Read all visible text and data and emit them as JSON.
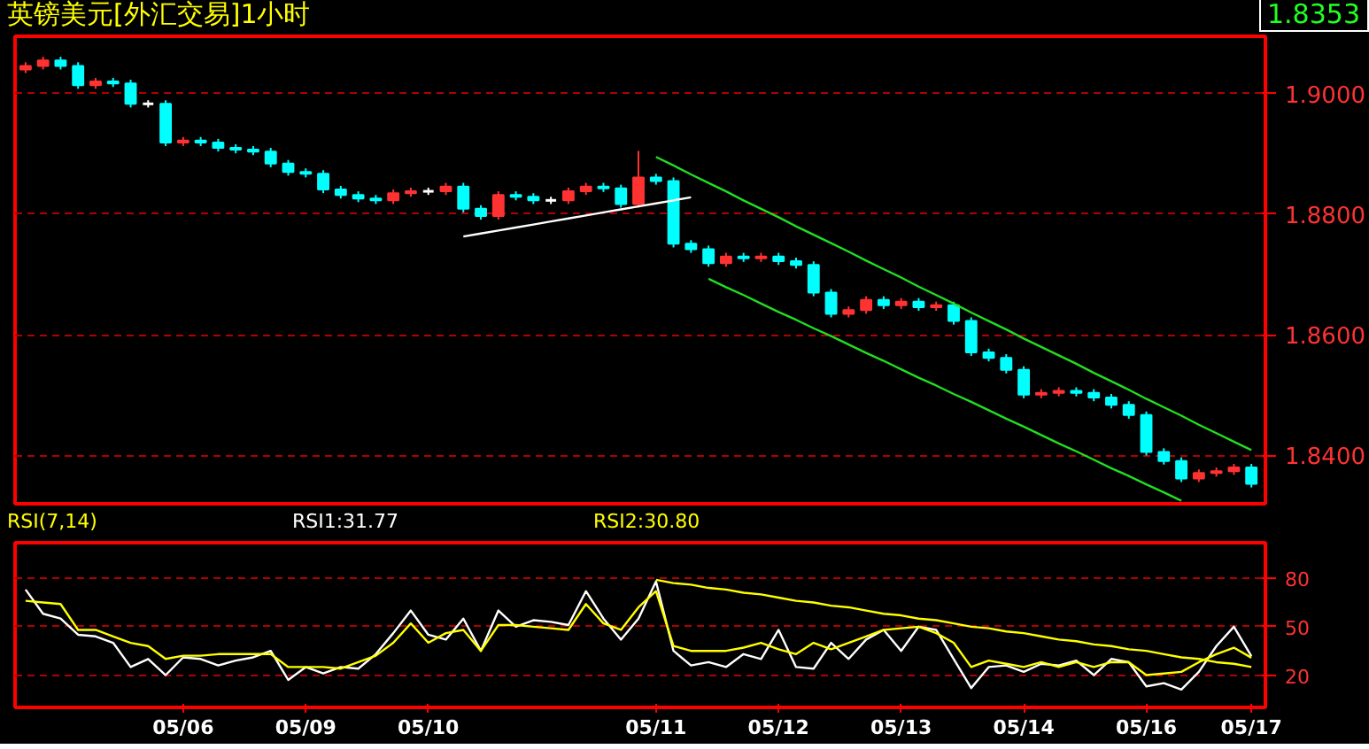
{
  "chart_data": [
    {
      "type": "candlestick",
      "title": "英镑美元[外汇交易]1小时",
      "annotations": [
        "1.8353"
      ],
      "ylim": [
        1.832,
        1.9095
      ],
      "yticks": [
        {
          "value": 1.84,
          "label": "1.8400"
        },
        {
          "value": 1.86,
          "label": "1.8600"
        },
        {
          "value": 1.88,
          "label": "1.8800"
        },
        {
          "value": 1.9,
          "label": "1.9000"
        }
      ],
      "grid": "y",
      "tick_labels": "y",
      "categories": [
        null,
        null,
        null,
        null,
        null,
        null,
        null,
        null,
        null,
        null,
        null,
        null,
        null,
        null,
        null,
        null,
        null,
        null,
        null,
        null,
        null,
        null,
        null,
        null,
        null,
        null,
        null,
        null,
        null,
        null,
        null,
        null,
        null,
        null,
        null,
        null,
        null,
        null,
        null,
        null,
        null,
        null,
        null,
        null,
        null,
        null,
        null,
        null,
        null,
        null,
        null,
        null,
        null,
        null,
        null,
        null,
        null,
        null,
        null,
        null,
        null,
        null,
        null,
        null,
        null,
        null,
        null,
        null,
        null,
        null,
        null
      ],
      "ohlc": [
        [
          1.904,
          1.9052,
          1.9034,
          1.9046
        ],
        [
          1.9046,
          1.9061,
          1.904,
          1.9055
        ],
        [
          1.9055,
          1.9061,
          1.904,
          1.9046
        ],
        [
          1.9046,
          1.9052,
          1.9008,
          1.9014
        ],
        [
          1.9014,
          1.9026,
          1.9008,
          1.902
        ],
        [
          1.902,
          1.9026,
          1.9011,
          1.9017
        ],
        [
          1.9017,
          1.9023,
          1.8977,
          1.8983
        ],
        [
          1.8983,
          1.8989,
          1.8977,
          1.8983
        ],
        [
          1.8983,
          1.8989,
          1.8913,
          1.8919
        ],
        [
          1.8919,
          1.8928,
          1.8913,
          1.8922
        ],
        [
          1.8922,
          1.8928,
          1.8913,
          1.8919
        ],
        [
          1.8919,
          1.8925,
          1.8904,
          1.891
        ],
        [
          1.891,
          1.8916,
          1.8901,
          1.8907
        ],
        [
          1.8907,
          1.8913,
          1.8898,
          1.8904
        ],
        [
          1.8904,
          1.891,
          1.8878,
          1.8884
        ],
        [
          1.8884,
          1.889,
          1.8864,
          1.887
        ],
        [
          1.887,
          1.8876,
          1.8861,
          1.8867
        ],
        [
          1.8867,
          1.8873,
          1.8835,
          1.8841
        ],
        [
          1.8841,
          1.8847,
          1.8826,
          1.8832
        ],
        [
          1.8832,
          1.8838,
          1.882,
          1.8826
        ],
        [
          1.8826,
          1.8832,
          1.8817,
          1.8823
        ],
        [
          1.8823,
          1.8841,
          1.8817,
          1.8835
        ],
        [
          1.8835,
          1.8844,
          1.8829,
          1.8838
        ],
        [
          1.8838,
          1.8844,
          1.8832,
          1.8838
        ],
        [
          1.8838,
          1.8852,
          1.8832,
          1.8846
        ],
        [
          1.8846,
          1.8852,
          1.8803,
          1.8809
        ],
        [
          1.8809,
          1.8815,
          1.8791,
          1.8797
        ],
        [
          1.8797,
          1.8838,
          1.8791,
          1.8832
        ],
        [
          1.8832,
          1.8838,
          1.8823,
          1.8829
        ],
        [
          1.8829,
          1.8835,
          1.8817,
          1.8823
        ],
        [
          1.8823,
          1.8829,
          1.8817,
          1.8823
        ],
        [
          1.8823,
          1.8844,
          1.8817,
          1.8838
        ],
        [
          1.8838,
          1.8852,
          1.8832,
          1.8846
        ],
        [
          1.8846,
          1.8852,
          1.8837,
          1.8843
        ],
        [
          1.8843,
          1.8849,
          1.8811,
          1.8817
        ],
        [
          1.8817,
          1.8905,
          1.8811,
          1.8861
        ],
        [
          1.8861,
          1.8867,
          1.8849,
          1.8855
        ],
        [
          1.8855,
          1.8861,
          1.8745,
          1.8751
        ],
        [
          1.8751,
          1.8757,
          1.8736,
          1.8742
        ],
        [
          1.8742,
          1.8748,
          1.8713,
          1.8719
        ],
        [
          1.8719,
          1.8736,
          1.8713,
          1.873
        ],
        [
          1.873,
          1.8736,
          1.8721,
          1.8727
        ],
        [
          1.8727,
          1.8736,
          1.8721,
          1.873
        ],
        [
          1.873,
          1.8736,
          1.8716,
          1.8722
        ],
        [
          1.8722,
          1.8728,
          1.871,
          1.8716
        ],
        [
          1.8716,
          1.8722,
          1.8664,
          1.867
        ],
        [
          1.867,
          1.8676,
          1.8629,
          1.8635
        ],
        [
          1.8635,
          1.8647,
          1.8629,
          1.8641
        ],
        [
          1.8641,
          1.8664,
          1.8635,
          1.8658
        ],
        [
          1.8658,
          1.8664,
          1.8643,
          1.8649
        ],
        [
          1.8649,
          1.8661,
          1.8643,
          1.8655
        ],
        [
          1.8655,
          1.8661,
          1.864,
          1.8646
        ],
        [
          1.8646,
          1.8655,
          1.864,
          1.8649
        ],
        [
          1.8649,
          1.8655,
          1.8617,
          1.8623
        ],
        [
          1.8623,
          1.8629,
          1.8565,
          1.8571
        ],
        [
          1.8571,
          1.8577,
          1.8556,
          1.8562
        ],
        [
          1.8562,
          1.8568,
          1.8536,
          1.8542
        ],
        [
          1.8542,
          1.8548,
          1.8495,
          1.8501
        ],
        [
          1.8501,
          1.851,
          1.8495,
          1.8504
        ],
        [
          1.8504,
          1.8513,
          1.8498,
          1.8507
        ],
        [
          1.8507,
          1.8513,
          1.8498,
          1.8504
        ],
        [
          1.8504,
          1.851,
          1.849,
          1.8496
        ],
        [
          1.8496,
          1.8502,
          1.8478,
          1.8484
        ],
        [
          1.8484,
          1.849,
          1.8461,
          1.8467
        ],
        [
          1.8467,
          1.8473,
          1.84,
          1.8406
        ],
        [
          1.8406,
          1.8412,
          1.8385,
          1.8391
        ],
        [
          1.8391,
          1.8397,
          1.8356,
          1.8362
        ],
        [
          1.8362,
          1.8377,
          1.8356,
          1.8371
        ],
        [
          1.8371,
          1.838,
          1.8365,
          1.8374
        ],
        [
          1.8374,
          1.8386,
          1.8368,
          1.838
        ],
        [
          1.838,
          1.8386,
          1.8347,
          1.8353
        ]
      ],
      "colors": [
        "#ff3232",
        "#ff3232",
        "#00ffff",
        "#00ffff",
        "#ff3232",
        "#00ffff",
        "#00ffff",
        "#ffffff",
        "#00ffff",
        "#ff3232",
        "#00ffff",
        "#00ffff",
        "#00ffff",
        "#00ffff",
        "#00ffff",
        "#00ffff",
        "#00ffff",
        "#00ffff",
        "#00ffff",
        "#00ffff",
        "#00ffff",
        "#ff3232",
        "#ff3232",
        "#ffffff",
        "#ff3232",
        "#00ffff",
        "#00ffff",
        "#ff3232",
        "#00ffff",
        "#00ffff",
        "#ffffff",
        "#ff3232",
        "#ff3232",
        "#00ffff",
        "#00ffff",
        "#ff3232",
        "#00ffff",
        "#00ffff",
        "#00ffff",
        "#00ffff",
        "#ff3232",
        "#00ffff",
        "#ff3232",
        "#00ffff",
        "#00ffff",
        "#00ffff",
        "#00ffff",
        "#ff3232",
        "#ff3232",
        "#00ffff",
        "#ff3232",
        "#00ffff",
        "#ff3232",
        "#00ffff",
        "#00ffff",
        "#00ffff",
        "#00ffff",
        "#00ffff",
        "#ff3232",
        "#ff3232",
        "#00ffff",
        "#00ffff",
        "#00ffff",
        "#00ffff",
        "#00ffff",
        "#00ffff",
        "#00ffff",
        "#ff3232",
        "#ff3232",
        "#ff3232",
        "#00ffff"
      ],
      "series": [
        {
          "type": "line",
          "color": "#22dd22",
          "values": [
            null,
            null,
            null,
            null,
            null,
            null,
            null,
            null,
            null,
            null,
            null,
            null,
            null,
            null,
            null,
            null,
            null,
            null,
            null,
            null,
            null,
            null,
            null,
            null,
            null,
            null,
            null,
            null,
            null,
            null,
            null,
            null,
            null,
            null,
            null,
            null,
            1.8895,
            1.8881,
            1.8866,
            1.8852,
            1.8838,
            1.8823,
            1.8809,
            1.8795,
            1.878,
            1.8766,
            1.8752,
            1.8738,
            1.8723,
            1.8709,
            1.8695,
            1.868,
            1.8666,
            1.8652,
            1.8637,
            1.8623,
            1.8609,
            1.8594,
            1.858,
            1.8566,
            1.8552,
            1.8537,
            1.8523,
            1.8509,
            1.8494,
            1.848,
            1.8466,
            1.8451,
            1.8437,
            1.8423,
            1.8409
          ]
        },
        {
          "type": "line",
          "color": "#22dd22",
          "values": [
            null,
            null,
            null,
            null,
            null,
            null,
            null,
            null,
            null,
            null,
            null,
            null,
            null,
            null,
            null,
            null,
            null,
            null,
            null,
            null,
            null,
            null,
            null,
            null,
            null,
            null,
            null,
            null,
            null,
            null,
            null,
            null,
            null,
            null,
            null,
            null,
            null,
            null,
            null,
            1.8693,
            1.8679,
            1.8666,
            1.8652,
            1.8638,
            1.8625,
            1.8611,
            1.8598,
            1.8584,
            1.857,
            1.8557,
            1.8543,
            1.8529,
            1.8516,
            1.8502,
            1.8489,
            1.8475,
            1.8461,
            1.8448,
            1.8434,
            1.842,
            1.8407,
            1.8393,
            1.8379,
            1.8366,
            1.8352,
            1.8339,
            1.8325,
            null,
            null,
            null,
            null
          ]
        },
        {
          "type": "line",
          "color": "#ffffff",
          "values": [
            null,
            null,
            null,
            null,
            null,
            null,
            null,
            null,
            null,
            null,
            null,
            null,
            null,
            null,
            null,
            null,
            null,
            null,
            null,
            null,
            null,
            null,
            null,
            null,
            null,
            1.8763,
            1.8768,
            1.8773,
            1.8778,
            1.8783,
            1.8788,
            1.8793,
            1.8798,
            1.8803,
            1.8808,
            1.8813,
            1.8818,
            1.8823,
            1.8828,
            null,
            null,
            null,
            null,
            null,
            null,
            null,
            null,
            null,
            null,
            null,
            null,
            null,
            null,
            null,
            null,
            null,
            null,
            null,
            null,
            null,
            null,
            null,
            null,
            null,
            null,
            null,
            null,
            null,
            null,
            null,
            null
          ]
        }
      ]
    },
    {
      "type": "line",
      "title": "RSI(7,14)",
      "ylim": [
        0,
        102
      ],
      "yticks": [
        20,
        50,
        80
      ],
      "grid": "y",
      "categories": [
        null,
        null,
        null,
        null,
        null,
        null,
        null,
        null,
        null,
        "05/06",
        null,
        null,
        null,
        null,
        null,
        null,
        "05/09",
        null,
        null,
        null,
        null,
        null,
        null,
        "05/10",
        null,
        null,
        null,
        null,
        null,
        null,
        null,
        null,
        null,
        null,
        null,
        null,
        "05/11",
        null,
        null,
        null,
        null,
        null,
        null,
        "05/12",
        null,
        null,
        null,
        null,
        null,
        null,
        "05/13",
        null,
        null,
        null,
        null,
        null,
        null,
        "05/14",
        null,
        null,
        null,
        null,
        null,
        null,
        "05/16",
        null,
        null,
        null,
        null,
        null,
        "05/17"
      ],
      "series": [
        {
          "name": "RSI1:31.77",
          "color": "#ffffff",
          "values": [
            73,
            58,
            55,
            45,
            44,
            40,
            25,
            30,
            20,
            31,
            30,
            26,
            29,
            31,
            35,
            17,
            25,
            21,
            25,
            24,
            33,
            46,
            60,
            45,
            42,
            55,
            35,
            60,
            50,
            54,
            53,
            51,
            72,
            55,
            42,
            55,
            78,
            35,
            26,
            28,
            25,
            33,
            30,
            48,
            25,
            24,
            40,
            30,
            42,
            48,
            35,
            50,
            48,
            30,
            12,
            25,
            26,
            22,
            27,
            26,
            29,
            20,
            30,
            28,
            13,
            15,
            11,
            22,
            38,
            50,
            31.77
          ]
        },
        {
          "name": "RSI2:30.80",
          "color": "#ffff00",
          "values": [
            66,
            65,
            64,
            48,
            48,
            44,
            40,
            38,
            30,
            32,
            32,
            33,
            33,
            33,
            33,
            25,
            25,
            25,
            24,
            28,
            32,
            40,
            52,
            40,
            46,
            48,
            35,
            51,
            51,
            50,
            49,
            48,
            64,
            52,
            48,
            62,
            72,
            38,
            35,
            35,
            35,
            37,
            40,
            36,
            33,
            40,
            36,
            40,
            44,
            48,
            49,
            50,
            46,
            40,
            25,
            29,
            27,
            25,
            28,
            25,
            28,
            25,
            28,
            28,
            20,
            21,
            22,
            28,
            33,
            37,
            30.8
          ]
        },
        {
          "type": "line",
          "color": "#ffff00",
          "values": [
            null,
            null,
            null,
            null,
            null,
            null,
            null,
            null,
            null,
            null,
            null,
            null,
            null,
            null,
            null,
            null,
            null,
            null,
            null,
            null,
            null,
            null,
            null,
            null,
            null,
            null,
            null,
            null,
            null,
            null,
            null,
            null,
            null,
            null,
            null,
            null,
            79,
            77,
            76,
            74,
            73,
            71,
            70,
            68,
            66,
            65,
            63,
            62,
            60,
            58,
            57,
            55,
            54,
            52,
            50,
            49,
            47,
            46,
            44,
            42,
            41,
            39,
            38,
            36,
            35,
            33,
            31,
            30,
            28,
            27,
            25
          ]
        }
      ]
    }
  ]
}
